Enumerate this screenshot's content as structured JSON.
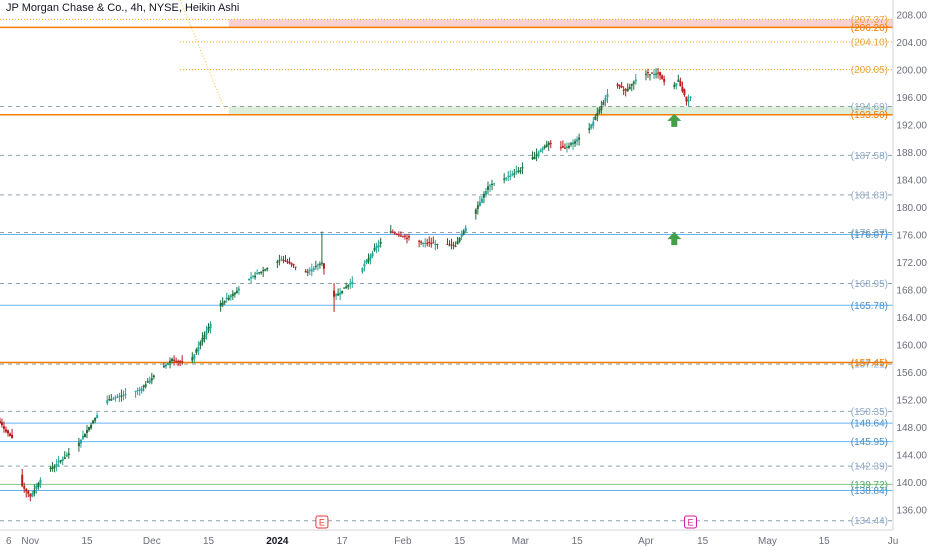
{
  "chart_data": {
    "type": "candlestick",
    "title": "JP Morgan Chase & Co., 4h, NYSE, Heikin Ashi",
    "ylim": [
      134,
      209
    ],
    "y_axis_ticks": [
      "208.00",
      "204.00",
      "200.00",
      "196.00",
      "192.00",
      "188.00",
      "184.00",
      "180.00",
      "176.00",
      "172.00",
      "168.00",
      "164.00",
      "160.00",
      "156.00",
      "152.00",
      "148.00",
      "144.00",
      "140.00",
      "136.00"
    ],
    "x_axis_ticks": [
      {
        "label": "6",
        "date": "2023-10-26"
      },
      {
        "label": "Nov",
        "date": "2023-11-01"
      },
      {
        "label": "15",
        "date": "2023-11-15"
      },
      {
        "label": "Dec",
        "date": "2023-12-01"
      },
      {
        "label": "15",
        "date": "2023-12-15"
      },
      {
        "label": "2024",
        "date": "2024-01-01"
      },
      {
        "label": "17",
        "date": "2024-01-17"
      },
      {
        "label": "Feb",
        "date": "2024-02-01"
      },
      {
        "label": "15",
        "date": "2024-02-15"
      },
      {
        "label": "Mar",
        "date": "2024-03-01"
      },
      {
        "label": "15",
        "date": "2024-03-15"
      },
      {
        "label": "Apr",
        "date": "2024-04-01"
      },
      {
        "label": "15",
        "date": "2024-04-15"
      },
      {
        "label": "May",
        "date": "2024-05-01"
      },
      {
        "label": "15",
        "date": "2024-05-15"
      },
      {
        "label": "Ju",
        "date": "2024-06-01"
      }
    ],
    "price_path": [
      {
        "date": "2023-10-24",
        "price": 149.0
      },
      {
        "date": "2023-10-28",
        "price": 146.0
      },
      {
        "date": "2023-10-30",
        "price": 139.5
      },
      {
        "date": "2023-11-01",
        "price": 138.0
      },
      {
        "date": "2023-11-04",
        "price": 141.0
      },
      {
        "date": "2023-11-12",
        "price": 145.0
      },
      {
        "date": "2023-11-20",
        "price": 152.0
      },
      {
        "date": "2023-11-28",
        "price": 153.5
      },
      {
        "date": "2023-12-06",
        "price": 158.0
      },
      {
        "date": "2023-12-10",
        "price": 157.0
      },
      {
        "date": "2023-12-18",
        "price": 166.0
      },
      {
        "date": "2023-12-26",
        "price": 170.0
      },
      {
        "date": "2024-01-02",
        "price": 172.5
      },
      {
        "date": "2024-01-08",
        "price": 170.5
      },
      {
        "date": "2024-01-12",
        "price": 172.0
      },
      {
        "date": "2024-01-15",
        "price": 167.0
      },
      {
        "date": "2024-01-20",
        "price": 169.5
      },
      {
        "date": "2024-01-25",
        "price": 174.0
      },
      {
        "date": "2024-01-29",
        "price": 176.5
      },
      {
        "date": "2024-02-05",
        "price": 175.0
      },
      {
        "date": "2024-02-14",
        "price": 174.5
      },
      {
        "date": "2024-02-22",
        "price": 183.0
      },
      {
        "date": "2024-03-01",
        "price": 185.5
      },
      {
        "date": "2024-03-08",
        "price": 189.5
      },
      {
        "date": "2024-03-12",
        "price": 188.5
      },
      {
        "date": "2024-03-18",
        "price": 191.5
      },
      {
        "date": "2024-03-24",
        "price": 198.0
      },
      {
        "date": "2024-03-27",
        "price": 197.0
      },
      {
        "date": "2024-03-31",
        "price": 199.5
      },
      {
        "date": "2024-04-04",
        "price": 199.5
      },
      {
        "date": "2024-04-07",
        "price": 197.0
      },
      {
        "date": "2024-04-09",
        "price": 198.5
      },
      {
        "date": "2024-04-11",
        "price": 195.5
      },
      {
        "date": "2024-04-12",
        "price": 196.0
      }
    ],
    "price_levels": [
      {
        "label": "(207.37)",
        "value": 207.37,
        "color": "#f5a623",
        "style": "dotted"
      },
      {
        "label": "(206.20)",
        "value": 206.2,
        "color": "#f57c00",
        "style": "solid"
      },
      {
        "label": "(204.10)",
        "value": 204.1,
        "color": "#f5a623",
        "style": "dotted"
      },
      {
        "label": "(200.05)",
        "value": 200.05,
        "color": "#f5a623",
        "style": "dotted"
      },
      {
        "label": "(194.69)",
        "value": 194.69,
        "color": "#90a4ae",
        "style": "dashed"
      },
      {
        "label": "(193.50)",
        "value": 193.5,
        "color": "#f57c00",
        "style": "solid"
      },
      {
        "label": "(187.58)",
        "value": 187.58,
        "color": "#90a4ae",
        "style": "dashed"
      },
      {
        "label": "(181.83)",
        "value": 181.83,
        "color": "#90a4ae",
        "style": "dashed"
      },
      {
        "label": "(176.37)",
        "value": 176.37,
        "color": "#90a4ae",
        "style": "dashed"
      },
      {
        "label": "(176.07)",
        "value": 176.07,
        "color": "#64b5f6",
        "style": "solid"
      },
      {
        "label": "(168.95)",
        "value": 168.95,
        "color": "#90a4ae",
        "style": "dashed"
      },
      {
        "label": "(165.78)",
        "value": 165.78,
        "color": "#64b5f6",
        "style": "solid"
      },
      {
        "label": "(157.21)",
        "value": 157.21,
        "color": "#90a4ae",
        "style": "dashed"
      },
      {
        "label": "(157.45)",
        "value": 157.45,
        "color": "#f57c00",
        "style": "solid"
      },
      {
        "label": "(150.35)",
        "value": 150.35,
        "color": "#90a4ae",
        "style": "dashed"
      },
      {
        "label": "(148.64)",
        "value": 148.64,
        "color": "#64b5f6",
        "style": "solid"
      },
      {
        "label": "(145.95)",
        "value": 145.95,
        "color": "#64b5f6",
        "style": "solid"
      },
      {
        "label": "(142.39)",
        "value": 142.39,
        "color": "#90a4ae",
        "style": "dashed"
      },
      {
        "label": "(139.72)",
        "value": 139.72,
        "color": "#81c784",
        "style": "solid"
      },
      {
        "label": "(138.84)",
        "value": 138.84,
        "color": "#64b5f6",
        "style": "solid"
      },
      {
        "label": "(134.44)",
        "value": 134.44,
        "color": "#90a4ae",
        "style": "dashed"
      }
    ],
    "zones": [
      {
        "from": 206.2,
        "to": 207.37,
        "start_date": "2023-12-20",
        "color": "#f8c9c9"
      },
      {
        "from": 193.5,
        "to": 194.69,
        "start_date": "2023-12-20",
        "color": "#d7ecd5"
      }
    ],
    "markers": [
      {
        "type": "arrow-up",
        "date": "2024-04-08",
        "price": 192.6,
        "color": "#43a047"
      },
      {
        "type": "arrow-up",
        "date": "2024-04-08",
        "price": 175.4,
        "color": "#43a047"
      }
    ],
    "events": [
      {
        "label": "E",
        "date": "2024-01-12",
        "color": "#e53935"
      },
      {
        "label": "E",
        "date": "2024-04-12",
        "color": "#d81b9e"
      }
    ],
    "colors": {
      "up": "#26a69a",
      "up_dark": "#1e6e3a",
      "down": "#b71c1c",
      "axis_text": "#6b6f7a",
      "grid": "#e0e3eb"
    }
  }
}
